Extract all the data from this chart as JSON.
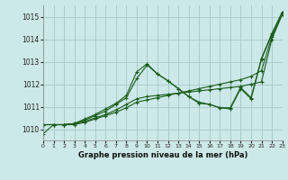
{
  "title": "Graphe pression niveau de la mer (hPa)",
  "bg_color": "#cce8e8",
  "grid_color": "#aacccc",
  "line_color": "#1a5c1a",
  "xlim": [
    0,
    23
  ],
  "ylim": [
    1009.5,
    1015.5
  ],
  "yticks": [
    1010,
    1011,
    1012,
    1013,
    1014,
    1015
  ],
  "xticks": [
    0,
    1,
    2,
    3,
    4,
    5,
    6,
    7,
    8,
    9,
    10,
    11,
    12,
    13,
    14,
    15,
    16,
    17,
    18,
    19,
    20,
    21,
    22,
    23
  ],
  "series": [
    [
      1009.8,
      1010.2,
      1010.2,
      1010.2,
      1010.3,
      1010.45,
      1010.6,
      1010.75,
      1010.95,
      1011.2,
      1011.3,
      1011.4,
      1011.5,
      1011.6,
      1011.7,
      1011.8,
      1011.9,
      1012.0,
      1012.1,
      1012.2,
      1012.35,
      1012.6,
      1014.1,
      1015.1
    ],
    [
      1010.2,
      1010.2,
      1010.2,
      1010.25,
      1010.35,
      1010.5,
      1010.65,
      1010.85,
      1011.1,
      1011.35,
      1011.45,
      1011.5,
      1011.55,
      1011.6,
      1011.65,
      1011.7,
      1011.75,
      1011.8,
      1011.85,
      1011.9,
      1012.0,
      1012.1,
      1014.0,
      1015.1
    ],
    [
      1010.2,
      1010.2,
      1010.2,
      1010.25,
      1010.4,
      1010.6,
      1010.8,
      1011.1,
      1011.4,
      1012.25,
      1012.85,
      1012.45,
      1012.15,
      1011.8,
      1011.45,
      1011.2,
      1011.1,
      1010.95,
      1010.9,
      1011.8,
      1011.35,
      1013.1,
      1014.2,
      1015.2
    ],
    [
      1010.2,
      1010.2,
      1010.2,
      1010.25,
      1010.45,
      1010.65,
      1010.9,
      1011.15,
      1011.5,
      1012.55,
      1012.9,
      1012.45,
      1012.15,
      1011.8,
      1011.45,
      1011.15,
      1011.1,
      1010.95,
      1010.95,
      1011.85,
      1011.4,
      1013.15,
      1014.25,
      1015.2
    ]
  ]
}
